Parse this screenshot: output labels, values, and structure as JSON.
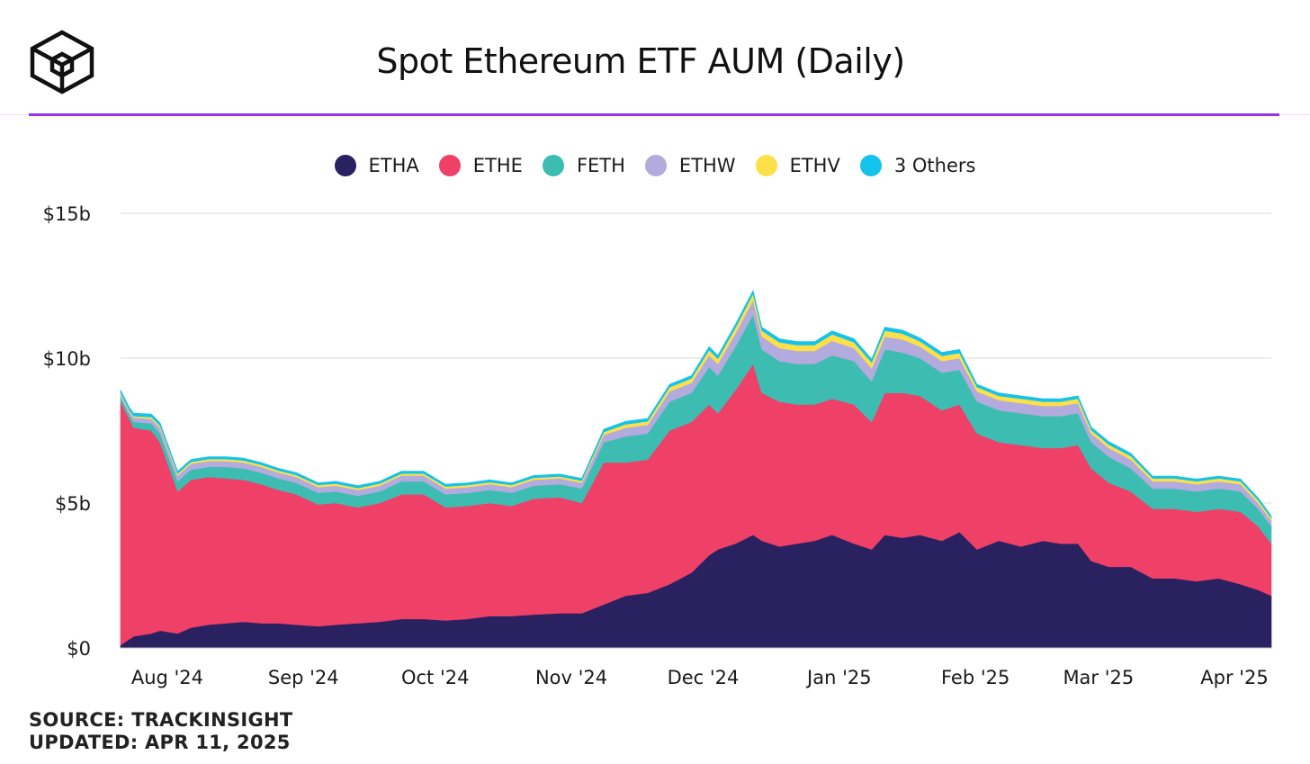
{
  "header": {
    "logo_icon": "cube-logo-icon",
    "accent_color": "#9b30e8"
  },
  "footer": {
    "source": "SOURCE: TRACKINSIGHT",
    "updated": "UPDATED: APR 11, 2025"
  },
  "chart_data": {
    "type": "area",
    "stacked": true,
    "title": "Spot Ethereum ETF AUM (Daily)",
    "xlabel": "",
    "ylabel": "",
    "ylim": [
      0,
      15
    ],
    "xlim": [
      "2024-07-23",
      "2025-04-11"
    ],
    "grid": true,
    "legend_position": "top-center",
    "y_ticks": [
      0,
      5,
      10,
      15
    ],
    "y_tick_labels": [
      "$0",
      "$5b",
      "$10b",
      "$15b"
    ],
    "x_ticks": [
      "2024-08-01",
      "2024-09-01",
      "2024-10-01",
      "2024-11-01",
      "2024-12-01",
      "2025-01-01",
      "2025-02-01",
      "2025-03-01",
      "2025-04-01"
    ],
    "x_tick_labels": [
      "Aug '24",
      "Sep '24",
      "Oct '24",
      "Nov '24",
      "Dec '24",
      "Jan '25",
      "Feb '25",
      "Mar '25",
      "Apr '25"
    ],
    "x": [
      "2024-07-23",
      "2024-07-25",
      "2024-07-26",
      "2024-07-30",
      "2024-08-01",
      "2024-08-05",
      "2024-08-08",
      "2024-08-12",
      "2024-08-16",
      "2024-08-20",
      "2024-08-24",
      "2024-08-28",
      "2024-09-01",
      "2024-09-06",
      "2024-09-10",
      "2024-09-15",
      "2024-09-20",
      "2024-09-25",
      "2024-09-30",
      "2024-10-05",
      "2024-10-10",
      "2024-10-15",
      "2024-10-20",
      "2024-10-25",
      "2024-10-31",
      "2024-11-05",
      "2024-11-10",
      "2024-11-15",
      "2024-11-20",
      "2024-11-25",
      "2024-11-30",
      "2024-12-04",
      "2024-12-06",
      "2024-12-10",
      "2024-12-14",
      "2024-12-16",
      "2024-12-20",
      "2024-12-24",
      "2024-12-28",
      "2025-01-01",
      "2025-01-06",
      "2025-01-10",
      "2025-01-13",
      "2025-01-17",
      "2025-01-21",
      "2025-01-26",
      "2025-01-30",
      "2025-02-03",
      "2025-02-08",
      "2025-02-13",
      "2025-02-18",
      "2025-02-22",
      "2025-02-26",
      "2025-03-01",
      "2025-03-05",
      "2025-03-10",
      "2025-03-15",
      "2025-03-20",
      "2025-03-25",
      "2025-03-30",
      "2025-04-04",
      "2025-04-08",
      "2025-04-11"
    ],
    "series": [
      {
        "name": "ETHA",
        "color": "#2a2160",
        "values": [
          0.1,
          0.3,
          0.4,
          0.5,
          0.6,
          0.5,
          0.7,
          0.8,
          0.85,
          0.9,
          0.85,
          0.85,
          0.8,
          0.75,
          0.8,
          0.85,
          0.9,
          1.0,
          1.0,
          0.95,
          1.0,
          1.1,
          1.1,
          1.15,
          1.2,
          1.2,
          1.5,
          1.8,
          1.9,
          2.2,
          2.6,
          3.2,
          3.4,
          3.6,
          3.9,
          3.7,
          3.5,
          3.6,
          3.7,
          3.9,
          3.6,
          3.4,
          3.9,
          3.8,
          3.9,
          3.7,
          4.0,
          3.4,
          3.7,
          3.5,
          3.7,
          3.6,
          3.6,
          3.0,
          2.8,
          2.8,
          2.4,
          2.4,
          2.3,
          2.4,
          2.2,
          2.0,
          1.8
        ]
      },
      {
        "name": "ETHE",
        "color": "#ef4067",
        "values": [
          8.4,
          7.6,
          7.2,
          7.0,
          6.5,
          4.9,
          5.1,
          5.1,
          5.0,
          4.9,
          4.8,
          4.6,
          4.5,
          4.2,
          4.2,
          4.0,
          4.1,
          4.3,
          4.3,
          3.9,
          3.9,
          3.9,
          3.8,
          4.0,
          4.0,
          3.8,
          4.9,
          4.6,
          4.6,
          5.3,
          5.2,
          5.2,
          4.7,
          5.3,
          5.9,
          5.1,
          5.0,
          4.8,
          4.7,
          4.7,
          4.8,
          4.4,
          4.9,
          5.0,
          4.8,
          4.5,
          4.4,
          4.0,
          3.4,
          3.5,
          3.2,
          3.3,
          3.4,
          3.2,
          2.9,
          2.6,
          2.4,
          2.4,
          2.4,
          2.4,
          2.5,
          2.2,
          1.8
        ]
      },
      {
        "name": "FETH",
        "color": "#3dbdb1",
        "values": [
          0.15,
          0.15,
          0.2,
          0.25,
          0.3,
          0.35,
          0.35,
          0.35,
          0.4,
          0.4,
          0.4,
          0.4,
          0.4,
          0.4,
          0.4,
          0.4,
          0.4,
          0.45,
          0.45,
          0.45,
          0.45,
          0.45,
          0.45,
          0.45,
          0.45,
          0.5,
          0.7,
          0.9,
          0.9,
          1.0,
          1.0,
          1.3,
          1.3,
          1.5,
          1.7,
          1.5,
          1.4,
          1.4,
          1.4,
          1.5,
          1.5,
          1.4,
          1.5,
          1.4,
          1.3,
          1.3,
          1.2,
          1.1,
          1.1,
          1.1,
          1.1,
          1.1,
          1.1,
          0.9,
          0.9,
          0.8,
          0.7,
          0.7,
          0.7,
          0.7,
          0.7,
          0.6,
          0.6
        ]
      },
      {
        "name": "ETHW",
        "color": "#b3aade",
        "values": [
          0.1,
          0.1,
          0.15,
          0.15,
          0.2,
          0.2,
          0.2,
          0.2,
          0.2,
          0.2,
          0.2,
          0.2,
          0.2,
          0.2,
          0.2,
          0.2,
          0.2,
          0.2,
          0.2,
          0.2,
          0.2,
          0.2,
          0.2,
          0.2,
          0.2,
          0.2,
          0.25,
          0.3,
          0.3,
          0.35,
          0.35,
          0.4,
          0.4,
          0.45,
          0.5,
          0.45,
          0.45,
          0.45,
          0.45,
          0.5,
          0.45,
          0.45,
          0.45,
          0.45,
          0.4,
          0.4,
          0.4,
          0.35,
          0.35,
          0.35,
          0.35,
          0.35,
          0.35,
          0.3,
          0.3,
          0.3,
          0.25,
          0.25,
          0.25,
          0.25,
          0.25,
          0.2,
          0.2
        ]
      },
      {
        "name": "ETHV",
        "color": "#fde047",
        "values": [
          0.05,
          0.05,
          0.05,
          0.07,
          0.07,
          0.07,
          0.07,
          0.07,
          0.07,
          0.07,
          0.07,
          0.07,
          0.07,
          0.07,
          0.07,
          0.07,
          0.07,
          0.07,
          0.07,
          0.07,
          0.07,
          0.07,
          0.07,
          0.07,
          0.07,
          0.07,
          0.1,
          0.12,
          0.12,
          0.15,
          0.15,
          0.18,
          0.18,
          0.2,
          0.22,
          0.2,
          0.2,
          0.2,
          0.2,
          0.22,
          0.2,
          0.2,
          0.2,
          0.2,
          0.18,
          0.18,
          0.18,
          0.15,
          0.15,
          0.15,
          0.15,
          0.15,
          0.15,
          0.12,
          0.12,
          0.12,
          0.1,
          0.1,
          0.1,
          0.1,
          0.1,
          0.1,
          0.08
        ]
      },
      {
        "name": "3 Others",
        "color": "#14c3ec",
        "values": [
          0.1,
          0.1,
          0.1,
          0.1,
          0.1,
          0.08,
          0.08,
          0.08,
          0.08,
          0.08,
          0.08,
          0.08,
          0.08,
          0.08,
          0.08,
          0.08,
          0.08,
          0.08,
          0.08,
          0.08,
          0.08,
          0.08,
          0.08,
          0.08,
          0.08,
          0.08,
          0.1,
          0.1,
          0.1,
          0.1,
          0.1,
          0.12,
          0.12,
          0.12,
          0.12,
          0.12,
          0.12,
          0.12,
          0.12,
          0.12,
          0.12,
          0.12,
          0.12,
          0.12,
          0.12,
          0.12,
          0.12,
          0.1,
          0.1,
          0.1,
          0.1,
          0.1,
          0.1,
          0.1,
          0.1,
          0.1,
          0.08,
          0.08,
          0.08,
          0.08,
          0.08,
          0.08,
          0.08
        ]
      }
    ]
  }
}
